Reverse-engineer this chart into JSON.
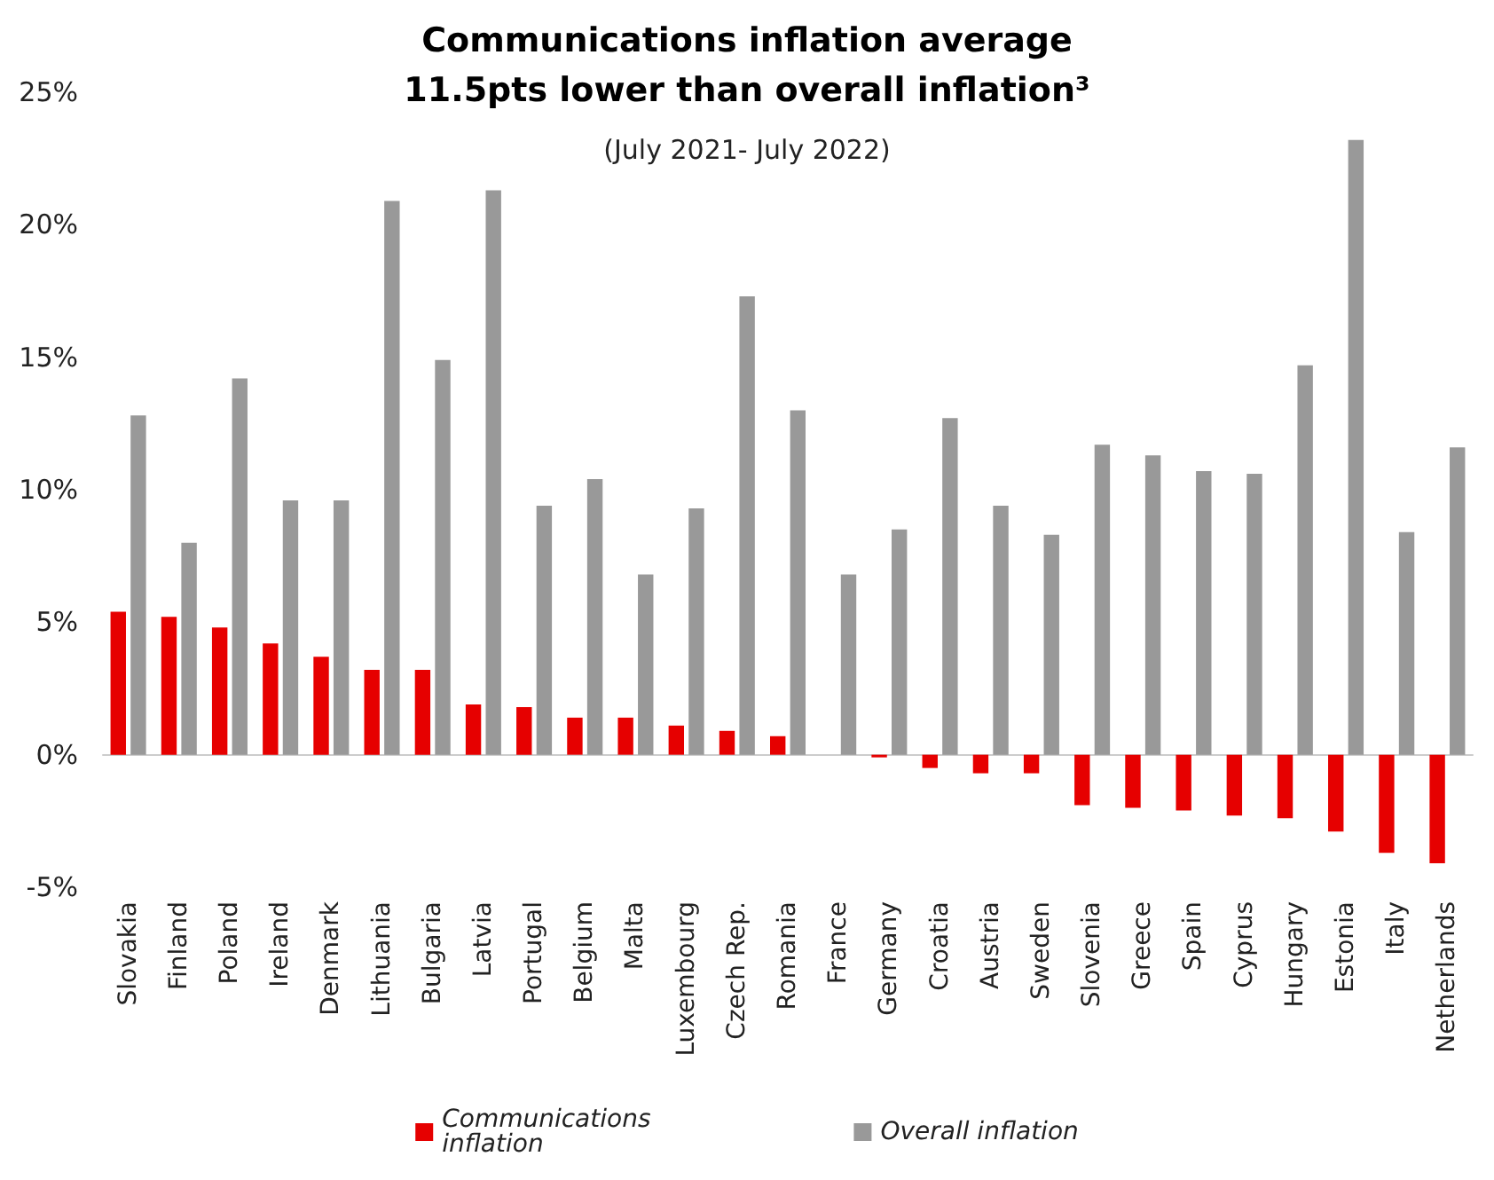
{
  "chart_data": {
    "type": "bar",
    "title": "Communications inflation average\n11.5pts lower than overall inflation³",
    "subtitle": "(July 2021- July 2022)",
    "categories": [
      "Slovakia",
      "Finland",
      "Poland",
      "Ireland",
      "Denmark",
      "Lithuania",
      "Bulgaria",
      "Latvia",
      "Portugal",
      "Belgium",
      "Malta",
      "Luxembourg",
      "Czech Rep.",
      "Romania",
      "France",
      "Germany",
      "Croatia",
      "Austria",
      "Sweden",
      "Slovenia",
      "Greece",
      "Spain",
      "Cyprus",
      "Hungary",
      "Estonia",
      "Italy",
      "Netherlands"
    ],
    "series": [
      {
        "name": "Communications inflation",
        "color": "#e60000",
        "values": [
          5.4,
          5.2,
          4.8,
          4.2,
          3.7,
          3.2,
          3.2,
          1.9,
          1.8,
          1.4,
          1.4,
          1.1,
          0.9,
          0.7,
          0,
          -0.1,
          -0.5,
          -0.7,
          -0.7,
          -1.9,
          -2.0,
          -2.1,
          -2.3,
          -2.4,
          -2.9,
          -3.7,
          -4.1
        ]
      },
      {
        "name": "Overall inflation",
        "color": "#999999",
        "values": [
          12.8,
          8.0,
          14.2,
          9.6,
          9.6,
          20.9,
          14.9,
          21.3,
          9.4,
          10.4,
          6.8,
          9.3,
          17.3,
          13.0,
          6.8,
          8.5,
          12.7,
          9.4,
          8.3,
          11.7,
          11.3,
          10.7,
          10.6,
          14.7,
          23.2,
          8.4,
          11.6
        ]
      }
    ],
    "ylim": [
      -5,
      25
    ],
    "yticks": [
      {
        "value": -5,
        "label": "-5%"
      },
      {
        "value": 0,
        "label": "0%"
      },
      {
        "value": 5,
        "label": "5%"
      },
      {
        "value": 10,
        "label": "10%"
      },
      {
        "value": 15,
        "label": "15%"
      },
      {
        "value": 20,
        "label": "20%"
      },
      {
        "value": 25,
        "label": "25%"
      }
    ],
    "legend": "bottom"
  }
}
